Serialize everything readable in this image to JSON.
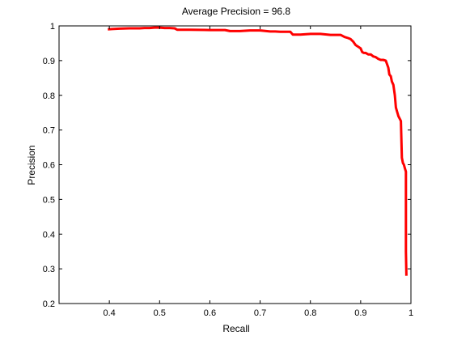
{
  "chart_data": {
    "type": "line",
    "title": "Average Precision = 96.8",
    "xlabel": "Recall",
    "ylabel": "Precision",
    "xlim": [
      0.3,
      1.0
    ],
    "ylim": [
      0.2,
      1.0
    ],
    "xticks": [
      0.4,
      0.5,
      0.6,
      0.7,
      0.8,
      0.9,
      1.0
    ],
    "xtick_labels": [
      "0.4",
      "0.5",
      "0.6",
      "0.7",
      "0.8",
      "0.9",
      "1"
    ],
    "yticks": [
      0.2,
      0.3,
      0.4,
      0.5,
      0.6,
      0.7,
      0.8,
      0.9,
      1.0
    ],
    "ytick_labels": [
      "0.2",
      "0.3",
      "0.4",
      "0.5",
      "0.6",
      "0.7",
      "0.8",
      "0.9",
      "1"
    ],
    "grid": false,
    "series": [
      {
        "color": "#ff0000",
        "x": [
          0.397,
          0.397,
          0.405,
          0.42,
          0.44,
          0.46,
          0.47,
          0.48,
          0.49,
          0.5,
          0.51,
          0.52,
          0.53,
          0.535,
          0.56,
          0.6,
          0.63,
          0.64,
          0.66,
          0.68,
          0.7,
          0.72,
          0.73,
          0.74,
          0.76,
          0.765,
          0.78,
          0.8,
          0.82,
          0.84,
          0.86,
          0.868,
          0.875,
          0.88,
          0.885,
          0.89,
          0.895,
          0.9,
          0.903,
          0.906,
          0.91,
          0.915,
          0.92,
          0.925,
          0.93,
          0.935,
          0.94,
          0.945,
          0.95,
          0.955,
          0.957,
          0.96,
          0.962,
          0.965,
          0.968,
          0.97,
          0.972,
          0.975,
          0.978,
          0.98,
          0.982,
          0.984,
          0.986,
          0.988,
          0.99,
          0.99,
          0.99,
          0.991
        ],
        "y": [
          0.99,
          0.99,
          0.991,
          0.992,
          0.993,
          0.993,
          0.994,
          0.994,
          0.995,
          0.995,
          0.994,
          0.994,
          0.993,
          0.989,
          0.989,
          0.988,
          0.988,
          0.985,
          0.985,
          0.987,
          0.987,
          0.984,
          0.984,
          0.983,
          0.983,
          0.975,
          0.975,
          0.977,
          0.977,
          0.974,
          0.974,
          0.968,
          0.965,
          0.962,
          0.955,
          0.945,
          0.94,
          0.935,
          0.925,
          0.922,
          0.922,
          0.918,
          0.918,
          0.912,
          0.91,
          0.905,
          0.902,
          0.902,
          0.9,
          0.88,
          0.86,
          0.855,
          0.84,
          0.83,
          0.8,
          0.765,
          0.755,
          0.74,
          0.732,
          0.726,
          0.62,
          0.605,
          0.6,
          0.59,
          0.58,
          0.56,
          0.35,
          0.28
        ]
      }
    ]
  }
}
